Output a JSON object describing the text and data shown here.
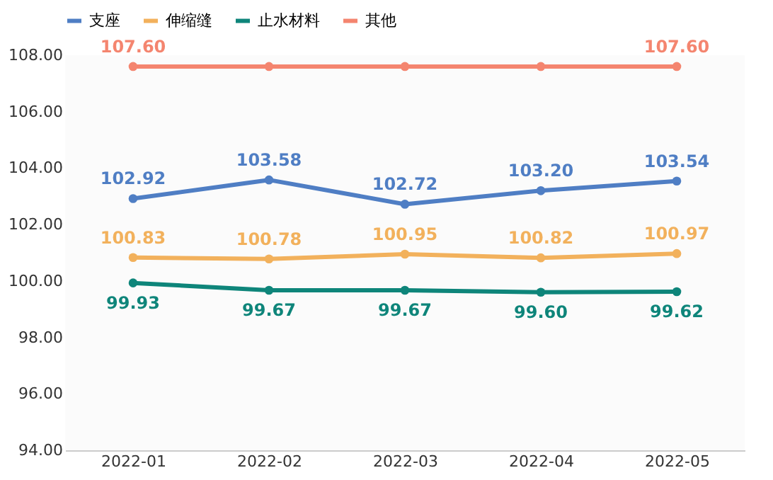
{
  "chart_data": {
    "type": "line",
    "categories": [
      "2022-01",
      "2022-02",
      "2022-03",
      "2022-04",
      "2022-05"
    ],
    "ylim": [
      94,
      108
    ],
    "yticks": [
      {
        "value": 94,
        "label": "94.00"
      },
      {
        "value": 96,
        "label": "96.00"
      },
      {
        "value": 98,
        "label": "98.00"
      },
      {
        "value": 100,
        "label": "100.00"
      },
      {
        "value": 102,
        "label": "102.00"
      },
      {
        "value": 104,
        "label": "104.00"
      },
      {
        "value": 106,
        "label": "106.00"
      },
      {
        "value": 108,
        "label": "108.00"
      }
    ],
    "legend": "top",
    "marker": "circle",
    "line_style": "solid",
    "grid": false,
    "series": [
      {
        "name": "支座",
        "color": "#4f7ec4",
        "values": [
          102.92,
          103.58,
          102.72,
          103.2,
          103.54
        ],
        "value_labels": [
          "102.92",
          "103.58",
          "102.72",
          "103.20",
          "103.54"
        ]
      },
      {
        "name": "伸缩缝",
        "color": "#f2b15c",
        "values": [
          100.83,
          100.78,
          100.95,
          100.82,
          100.97
        ],
        "value_labels": [
          "100.83",
          "100.78",
          "100.95",
          "100.82",
          "100.97"
        ]
      },
      {
        "name": "止水材料",
        "color": "#0e857a",
        "values": [
          99.93,
          99.67,
          99.67,
          99.6,
          99.62
        ],
        "value_labels": [
          "99.93",
          "99.67",
          "99.67",
          "99.60",
          "99.62"
        ]
      },
      {
        "name": "其他",
        "color": "#f4856f",
        "values": [
          107.6,
          107.6,
          107.6,
          107.6,
          107.6
        ],
        "value_labels": [
          "107.60",
          null,
          null,
          null,
          "107.60"
        ]
      }
    ]
  }
}
